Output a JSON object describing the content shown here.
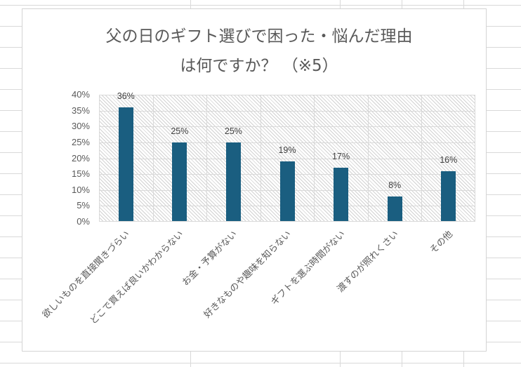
{
  "chart_data": {
    "type": "bar",
    "title": "父の日のギフト選びで困った・悩んだ理由は何ですか？（※5）",
    "title_lines": [
      "父の日のギフト選びで困った・悩んだ理由",
      "は何ですか？ （※5）"
    ],
    "categories": [
      "欲しいものを直接聞きづらい",
      "どこで買えば良いかわからない",
      "お金・予算がない",
      "好きなものや趣味を知らない",
      "ギフトを選ぶ時間がない",
      "渡すのが照れくさい",
      "その他"
    ],
    "values": [
      36,
      25,
      25,
      19,
      17,
      8,
      16
    ],
    "value_labels": [
      "36%",
      "25%",
      "25%",
      "19%",
      "17%",
      "8%",
      "16%"
    ],
    "xlabel": "",
    "ylabel": "",
    "ylim": [
      0,
      40
    ],
    "yticks": [
      "0%",
      "5%",
      "10%",
      "15%",
      "20%",
      "25%",
      "30%",
      "35%",
      "40%"
    ],
    "grid": true,
    "legend": null,
    "colors": {
      "bar": "#1a5e80",
      "text": "#595959",
      "grid": "#d9d9d9"
    }
  }
}
